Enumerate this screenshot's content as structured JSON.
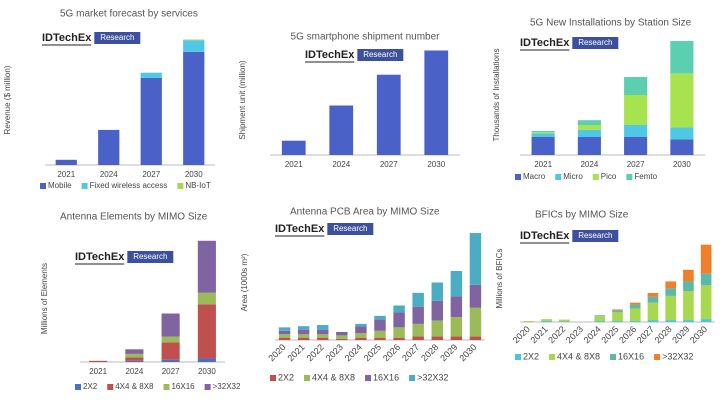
{
  "chart_data": [
    {
      "type": "bar",
      "title": "5G market forecast by services",
      "y_label": "Revenue ($ million)",
      "brand": "IDTechEx",
      "brand_tag": "Research",
      "categories": [
        "2021",
        "2024",
        "2027",
        "2030"
      ],
      "stacked": true,
      "ylim": [
        0,
        100
      ],
      "series": [
        {
          "name": "Mobile",
          "color": "#4a62c8",
          "values": [
            4,
            27,
            67,
            87
          ]
        },
        {
          "name": "Fixed wireless access",
          "color": "#4fc8e6",
          "values": [
            0,
            0,
            4,
            9
          ]
        },
        {
          "name": "NB-IoT",
          "color": "#a6d84f",
          "values": [
            0,
            0,
            0,
            0.5
          ]
        }
      ]
    },
    {
      "type": "bar",
      "title": "5G smartphone shipment number",
      "y_label": "Shipment unit (million)",
      "brand": "IDTechEx",
      "brand_tag": "Research",
      "categories": [
        "2021",
        "2024",
        "2027",
        "2030"
      ],
      "values": [
        13,
        45,
        73,
        95
      ],
      "color": "#4a62c8",
      "ylim": [
        0,
        100
      ]
    },
    {
      "type": "bar",
      "title": "5G New Installations by Station Size",
      "y_label": "Thousands of Installations",
      "brand": "IDTechEx",
      "brand_tag": "Research",
      "categories": [
        "2021",
        "2024",
        "2027",
        "2030"
      ],
      "stacked": true,
      "ylim": [
        0,
        100
      ],
      "series": [
        {
          "name": "Macro",
          "color": "#4a62c8",
          "values": [
            15,
            15,
            15,
            13
          ]
        },
        {
          "name": "Micro",
          "color": "#4fc8e6",
          "values": [
            3,
            6,
            10,
            10
          ]
        },
        {
          "name": "Pico",
          "color": "#a6e34f",
          "values": [
            1,
            4,
            25,
            45
          ]
        },
        {
          "name": "Femto",
          "color": "#5ccfb0",
          "values": [
            1,
            4,
            15,
            27
          ]
        }
      ]
    },
    {
      "type": "bar",
      "title": "Antenna Elements by MIMO Size",
      "y_label": "Millions of Elements",
      "brand": "IDTechEx",
      "brand_tag": "Research",
      "categories": [
        "2021",
        "2024",
        "2027",
        "2030"
      ],
      "stacked": true,
      "ylim": [
        0,
        110
      ],
      "series": [
        {
          "name": "2X2",
          "color": "#4472c4",
          "values": [
            0,
            1,
            2,
            3
          ]
        },
        {
          "name": "4X4 & 8X8",
          "color": "#c0504d",
          "values": [
            1,
            3,
            15,
            47
          ]
        },
        {
          "name": "16X16",
          "color": "#9bbb59",
          "values": [
            0,
            3,
            5,
            10
          ]
        },
        {
          "name": ">32X32",
          "color": "#8064a2",
          "values": [
            0,
            4,
            20,
            45
          ]
        }
      ]
    },
    {
      "type": "bar",
      "title": "Antenna PCB Area by MIMO Size",
      "y_label": "Area (1000s m²)",
      "brand": "IDTechEx",
      "brand_tag": "Research",
      "categories": [
        "2020",
        "2021",
        "2022",
        "2023",
        "2024",
        "2025",
        "2026",
        "2027",
        "2028",
        "2029",
        "2030"
      ],
      "stacked": true,
      "ylim": [
        0,
        100
      ],
      "series": [
        {
          "name": "2X2",
          "color": "#c0504d",
          "values": [
            2,
            2,
            2,
            1,
            2,
            2,
            2,
            3,
            3,
            3,
            3
          ]
        },
        {
          "name": "4X4 & 8X8",
          "color": "#9bbb59",
          "values": [
            3,
            3,
            3,
            3,
            4,
            6,
            9,
            11,
            14,
            17,
            25
          ]
        },
        {
          "name": "16X16",
          "color": "#8064a2",
          "values": [
            3,
            4,
            4,
            3,
            6,
            10,
            13,
            15,
            17,
            18,
            20
          ]
        },
        {
          "name": ">32X32",
          "color": "#4bacc6",
          "values": [
            3,
            3,
            4,
            0,
            2,
            3,
            6,
            12,
            16,
            22,
            45
          ]
        }
      ]
    },
    {
      "type": "bar",
      "title": "BFICs by MIMO Size",
      "y_label": "Millions of BFICs",
      "brand": "IDTechEx",
      "brand_tag": "Research",
      "categories": [
        "2020",
        "2021",
        "2022",
        "2023",
        "2024",
        "2025",
        "2026",
        "2027",
        "2028",
        "2029",
        "2030"
      ],
      "stacked": true,
      "ylim": [
        0,
        90
      ],
      "series": [
        {
          "name": "2X2",
          "color": "#4bc3e6",
          "values": [
            0,
            1,
            0.5,
            0,
            1,
            1,
            1,
            2,
            2,
            2,
            3
          ]
        },
        {
          "name": "4X4 & 8X8",
          "color": "#a8d84f",
          "values": [
            1,
            2,
            2,
            0,
            5,
            9,
            13,
            18,
            25,
            30,
            35
          ]
        },
        {
          "name": "16X16",
          "color": "#5cb8a8",
          "values": [
            0,
            0,
            0,
            0,
            1,
            2,
            4,
            6,
            8,
            10,
            12
          ]
        },
        {
          "name": ">32X32",
          "color": "#f07f2c",
          "values": [
            0,
            0,
            0,
            0,
            0,
            1,
            2,
            4,
            7,
            12,
            30
          ]
        }
      ]
    }
  ]
}
